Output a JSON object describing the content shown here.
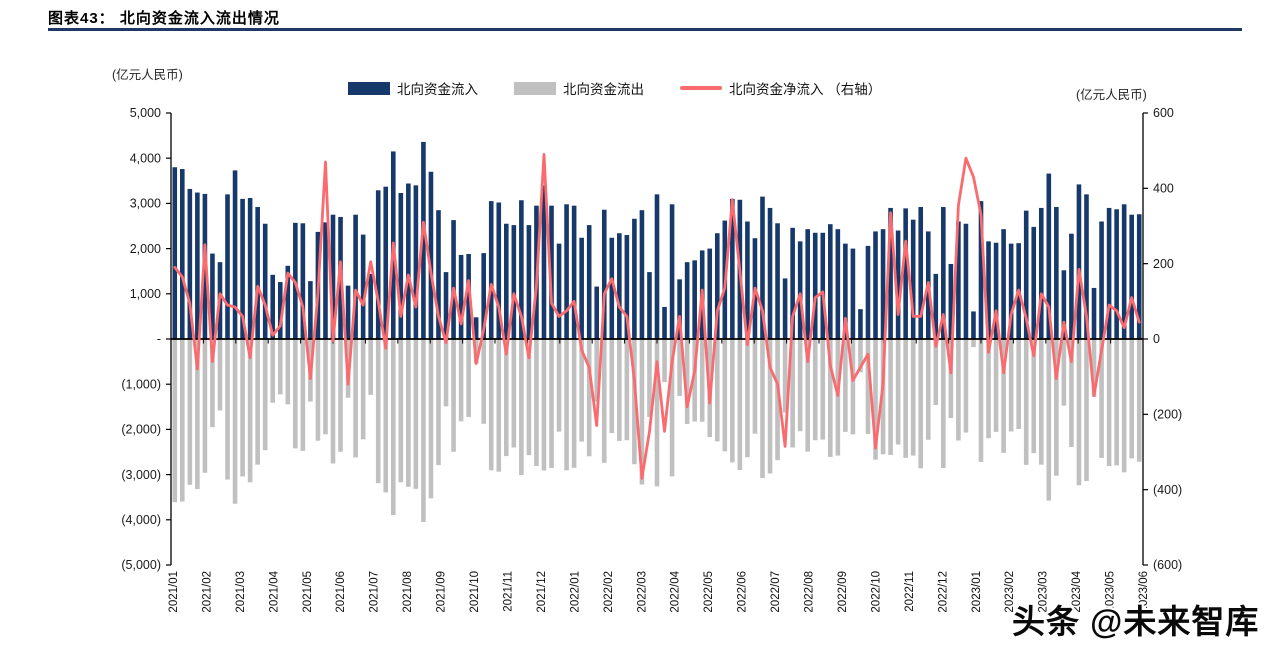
{
  "header": {
    "title": "图表43： 北向资金流入流出情况"
  },
  "axis_units": {
    "left": "(亿元人民币)",
    "right": "(亿元人民币)"
  },
  "legend": {
    "inflow": "北向资金流入",
    "outflow": "北向资金流出",
    "net": "北向资金净流入 （右轴）"
  },
  "watermark": "头条 @未来智库",
  "colors": {
    "inflow": "#16386B",
    "outflow": "#C0C0C0",
    "net": "#F96B6E",
    "title_rule": "#1F3864",
    "axis": "#000000",
    "tick_text": "#1a1a1a"
  },
  "chart_data": {
    "type": "bar",
    "subtype": "weekly bars with line overlay (combo)",
    "title": "北向资金流入流出情况",
    "xlabel": "",
    "ylabel_left": "(亿元人民币)",
    "ylabel_right": "(亿元人民币)",
    "grid": false,
    "legend_position": "top-center",
    "left_axis": {
      "min": -5000,
      "max": 5000,
      "step": 1000,
      "tick_labels": [
        "5,000",
        "4,000",
        "3,000",
        "2,000",
        "1,000",
        "-",
        "(1,000)",
        "(2,000)",
        "(3,000)",
        "(4,000)",
        "(5,000)"
      ]
    },
    "right_axis": {
      "min": -600,
      "max": 600,
      "step": 200,
      "tick_labels": [
        "600",
        "400",
        "200",
        "0",
        "(200)",
        "(400)",
        "(600)"
      ]
    },
    "months": [
      "2021/01",
      "2021/02",
      "2021/03",
      "2021/04",
      "2021/05",
      "2021/06",
      "2021/07",
      "2021/08",
      "2021/09",
      "2021/10",
      "2021/11",
      "2021/12",
      "2022/01",
      "2022/02",
      "2022/03",
      "2022/04",
      "2022/05",
      "2022/06",
      "2022/07",
      "2022/08",
      "2022/09",
      "2022/10",
      "2022/11",
      "2022/12",
      "2023/01",
      "2023/02",
      "2023/03",
      "2023/04",
      "2023/05",
      "2023/06"
    ],
    "weeks_per_month": [
      4,
      4,
      5,
      4,
      4,
      5,
      4,
      4,
      5,
      4,
      4,
      5,
      4,
      4,
      5,
      4,
      4,
      5,
      4,
      4,
      5,
      4,
      4,
      5,
      4,
      4,
      5,
      4,
      4,
      4
    ],
    "series": [
      {
        "name": "北向资金流入",
        "type": "bar",
        "axis": "left",
        "color": "#16386B",
        "values": [
          3800,
          3760,
          3320,
          3240,
          3210,
          1890,
          1700,
          3200,
          3730,
          3100,
          3120,
          2920,
          2550,
          1420,
          1260,
          1620,
          2570,
          2560,
          1280,
          2370,
          2580,
          2750,
          2700,
          1180,
          2750,
          2310,
          1440,
          3290,
          3370,
          4150,
          3230,
          3440,
          3400,
          4360,
          3700,
          2850,
          1480,
          2630,
          1860,
          1880,
          480,
          1900,
          3050,
          3020,
          2550,
          2520,
          3070,
          2520,
          2950,
          3400,
          2950,
          2110,
          2980,
          2950,
          2240,
          2520,
          1160,
          2860,
          2240,
          2340,
          2300,
          2660,
          2850,
          1480,
          3200,
          710,
          2980,
          1320,
          1700,
          1740,
          1960,
          2000,
          2340,
          2620,
          3100,
          3080,
          2600,
          2230,
          3150,
          2900,
          2560,
          1340,
          2460,
          2160,
          2430,
          2350,
          2350,
          2540,
          2430,
          2110,
          2000,
          660,
          2060,
          2380,
          2430,
          2900,
          2400,
          2890,
          2640,
          2920,
          2380,
          1440,
          2920,
          1660,
          2600,
          2550,
          610,
          3050,
          2160,
          2130,
          2430,
          2110,
          2120,
          2840,
          2480,
          2900,
          3660,
          2920,
          1520,
          2330,
          3420,
          3200,
          1130,
          2600,
          2900,
          2870,
          2980,
          2750,
          2760
        ]
      },
      {
        "name": "北向资金流出",
        "type": "bar",
        "axis": "left",
        "color": "#C0C0C0",
        "values": [
          -3610,
          -3595,
          -3225,
          -3320,
          -2960,
          -1950,
          -1580,
          -3110,
          -3645,
          -3040,
          -3170,
          -2780,
          -2460,
          -1410,
          -1225,
          -1445,
          -2420,
          -2475,
          -1385,
          -2250,
          -2110,
          -2755,
          -2495,
          -1300,
          -2620,
          -2220,
          -1235,
          -3190,
          -3395,
          -3895,
          -3170,
          -3270,
          -3315,
          -4050,
          -3525,
          -2790,
          -1490,
          -2495,
          -1820,
          -1725,
          -545,
          -1875,
          -2905,
          -2935,
          -2590,
          -2400,
          -3010,
          -2570,
          -2810,
          -2910,
          -2855,
          -2050,
          -2905,
          -2850,
          -2270,
          -2595,
          -1390,
          -2740,
          -2080,
          -2255,
          -2240,
          -2770,
          -3220,
          -1725,
          -3260,
          -955,
          -3040,
          -1260,
          -1880,
          -1825,
          -1830,
          -2170,
          -2265,
          -2485,
          -2730,
          -2900,
          -2615,
          -2095,
          -3075,
          -2975,
          -2680,
          -1625,
          -2400,
          -2040,
          -2490,
          -2240,
          -2225,
          -2610,
          -2580,
          -2055,
          -2110,
          -735,
          -2100,
          -2670,
          -2550,
          -2565,
          -2335,
          -2630,
          -2580,
          -2860,
          -2230,
          -1460,
          -2855,
          -1750,
          -2245,
          -2070,
          -180,
          -2720,
          -2195,
          -2055,
          -2520,
          -2045,
          -1990,
          -2785,
          -2525,
          -2780,
          -3575,
          -3025,
          -1475,
          -2390,
          -3235,
          -3140,
          -1280,
          -2630,
          -2810,
          -2795,
          -2950,
          -2640,
          -2715
        ]
      },
      {
        "name": "北向资金净流入",
        "type": "line",
        "axis": "right",
        "color": "#F96B6E",
        "values": [
          190,
          165,
          95,
          -80,
          250,
          -60,
          120,
          90,
          85,
          60,
          -50,
          140,
          90,
          10,
          35,
          175,
          150,
          85,
          -105,
          120,
          470,
          -5,
          205,
          -120,
          130,
          90,
          205,
          100,
          -25,
          255,
          60,
          170,
          85,
          310,
          175,
          60,
          -10,
          135,
          40,
          155,
          -65,
          25,
          145,
          85,
          -40,
          120,
          60,
          -50,
          140,
          490,
          95,
          60,
          75,
          100,
          -30,
          -75,
          -230,
          120,
          160,
          85,
          60,
          -110,
          -370,
          -245,
          -60,
          -245,
          -60,
          60,
          -180,
          -85,
          130,
          -170,
          75,
          135,
          370,
          180,
          -15,
          135,
          75,
          -75,
          -120,
          -285,
          60,
          120,
          -60,
          110,
          125,
          -70,
          -150,
          55,
          -110,
          -75,
          -40,
          -290,
          -120,
          335,
          65,
          260,
          60,
          60,
          150,
          -20,
          65,
          -90,
          355,
          480,
          430,
          330,
          -35,
          75,
          -90,
          65,
          130,
          55,
          -45,
          120,
          85,
          -105,
          45,
          -60,
          185,
          60,
          -150,
          -30,
          90,
          75,
          30,
          110,
          45
        ]
      }
    ]
  }
}
